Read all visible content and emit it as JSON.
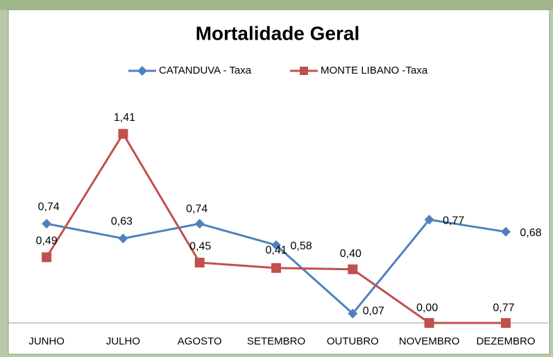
{
  "chart_data": {
    "type": "line",
    "title": "Mortalidade Geral",
    "categories": [
      "JUNHO",
      "JULHO",
      "AGOSTO",
      "SETEMBRO",
      "OUTUBRO",
      "NOVEMBRO",
      "DEZEMBRO"
    ],
    "series": [
      {
        "name": "CATANDUVA - Taxa",
        "color": "#4f81bd",
        "marker": "diamond",
        "values": [
          0.74,
          0.63,
          0.74,
          0.58,
          0.07,
          0.77,
          0.68
        ],
        "value_labels": [
          "0,74",
          "0,63",
          "0,74",
          "0,58",
          "0,07",
          "0,77",
          "0,68"
        ]
      },
      {
        "name": "MONTE LIBANO -Taxa",
        "color": "#c0504d",
        "marker": "square",
        "values": [
          0.49,
          1.41,
          0.45,
          0.41,
          0.4,
          0,
          0
        ],
        "value_labels": [
          "0,49",
          "1,41",
          "0,45",
          "0,41",
          "0,40",
          "0,00",
          null
        ]
      }
    ],
    "annotations": [
      "0,77"
    ],
    "ylim": [
      0,
      1.6
    ],
    "legend": "top"
  }
}
